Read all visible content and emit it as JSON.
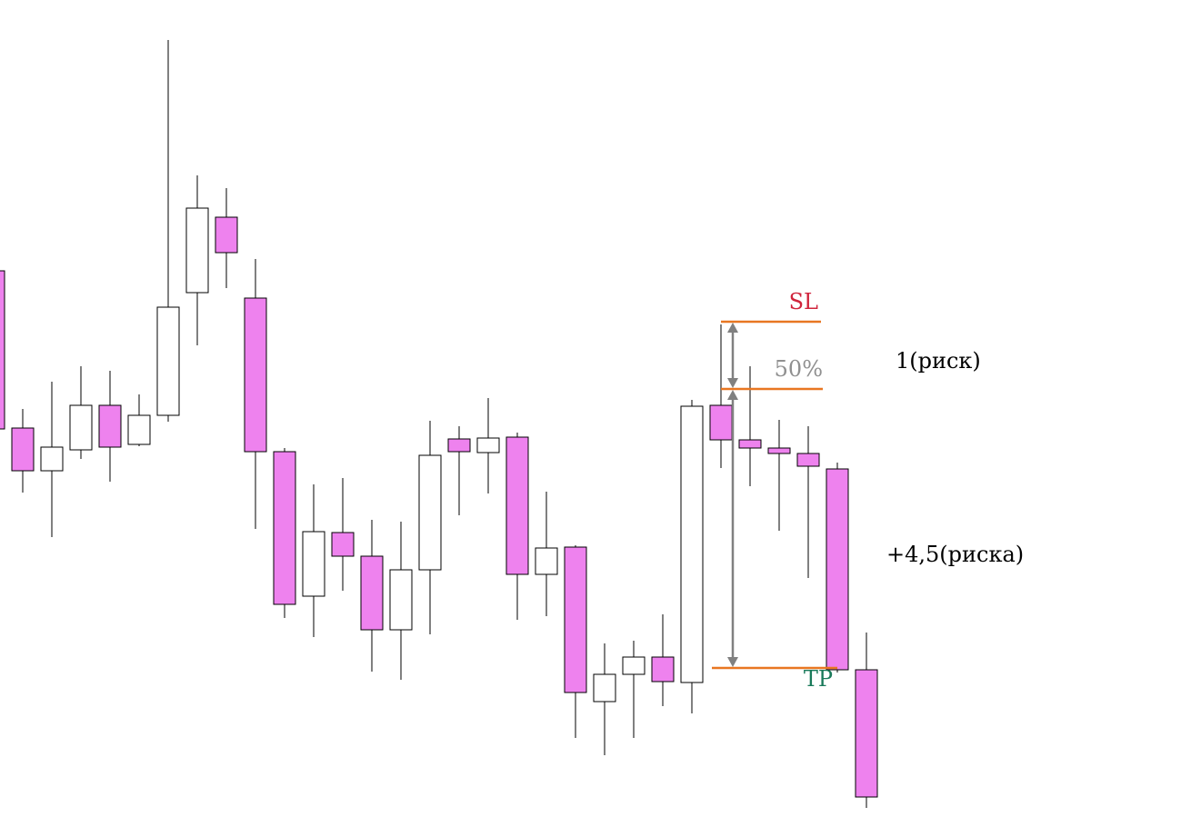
{
  "chart_data": {
    "type": "candlestick",
    "ylim": [
      0,
      90
    ],
    "up_color": "#ffffff",
    "down_color": "#ee82ee",
    "open": [
      60.2,
      42.9,
      38.2,
      40.5,
      45.4,
      41.1,
      44.3,
      57.8,
      66.1,
      57.2,
      40.3,
      24.4,
      31.4,
      28.8,
      20.7,
      27.3,
      41.7,
      40.2,
      41.9,
      26.8,
      29.8,
      12.8,
      15.8,
      17.7,
      14.9,
      45.4,
      41.6,
      40.7,
      40.1,
      38.4,
      16.3
    ],
    "high": [
      60.2,
      45.0,
      48.0,
      49.7,
      49.2,
      46.6,
      85.6,
      70.7,
      69.3,
      61.5,
      40.7,
      36.7,
      37.4,
      32.8,
      32.6,
      43.7,
      43.1,
      46.2,
      42.4,
      35.9,
      30.0,
      19.2,
      19.5,
      22.4,
      46.0,
      54.3,
      49.7,
      43.8,
      43.1,
      39.1,
      20.4
    ],
    "low": [
      42.8,
      35.8,
      30.9,
      39.5,
      37.0,
      40.9,
      43.6,
      52.0,
      58.3,
      31.8,
      22.0,
      19.9,
      25.0,
      16.1,
      15.2,
      20.2,
      33.3,
      35.7,
      21.8,
      22.2,
      8.8,
      6.9,
      8.8,
      12.3,
      11.5,
      38.5,
      36.5,
      31.6,
      26.4,
      16.0,
      1.1
    ],
    "close": [
      42.8,
      38.2,
      40.8,
      45.4,
      40.8,
      44.3,
      56.2,
      67.1,
      62.2,
      40.3,
      23.5,
      31.5,
      28.8,
      20.7,
      27.3,
      39.9,
      40.3,
      41.8,
      26.8,
      29.7,
      13.8,
      15.8,
      17.7,
      15.0,
      45.3,
      41.6,
      40.7,
      40.1,
      38.7,
      16.3,
      2.3
    ],
    "levels": [
      {
        "label": "SL",
        "value": 54.6,
        "color": "#d0243c"
      },
      {
        "label": "50%",
        "value": 47.2,
        "color": "#909090"
      },
      {
        "label": "TP",
        "value": 16.5,
        "color": "#1a7a5a"
      }
    ],
    "level_line_color": "#e87722",
    "annotations": [
      "1(риск)",
      "+4,5(риска)"
    ]
  }
}
